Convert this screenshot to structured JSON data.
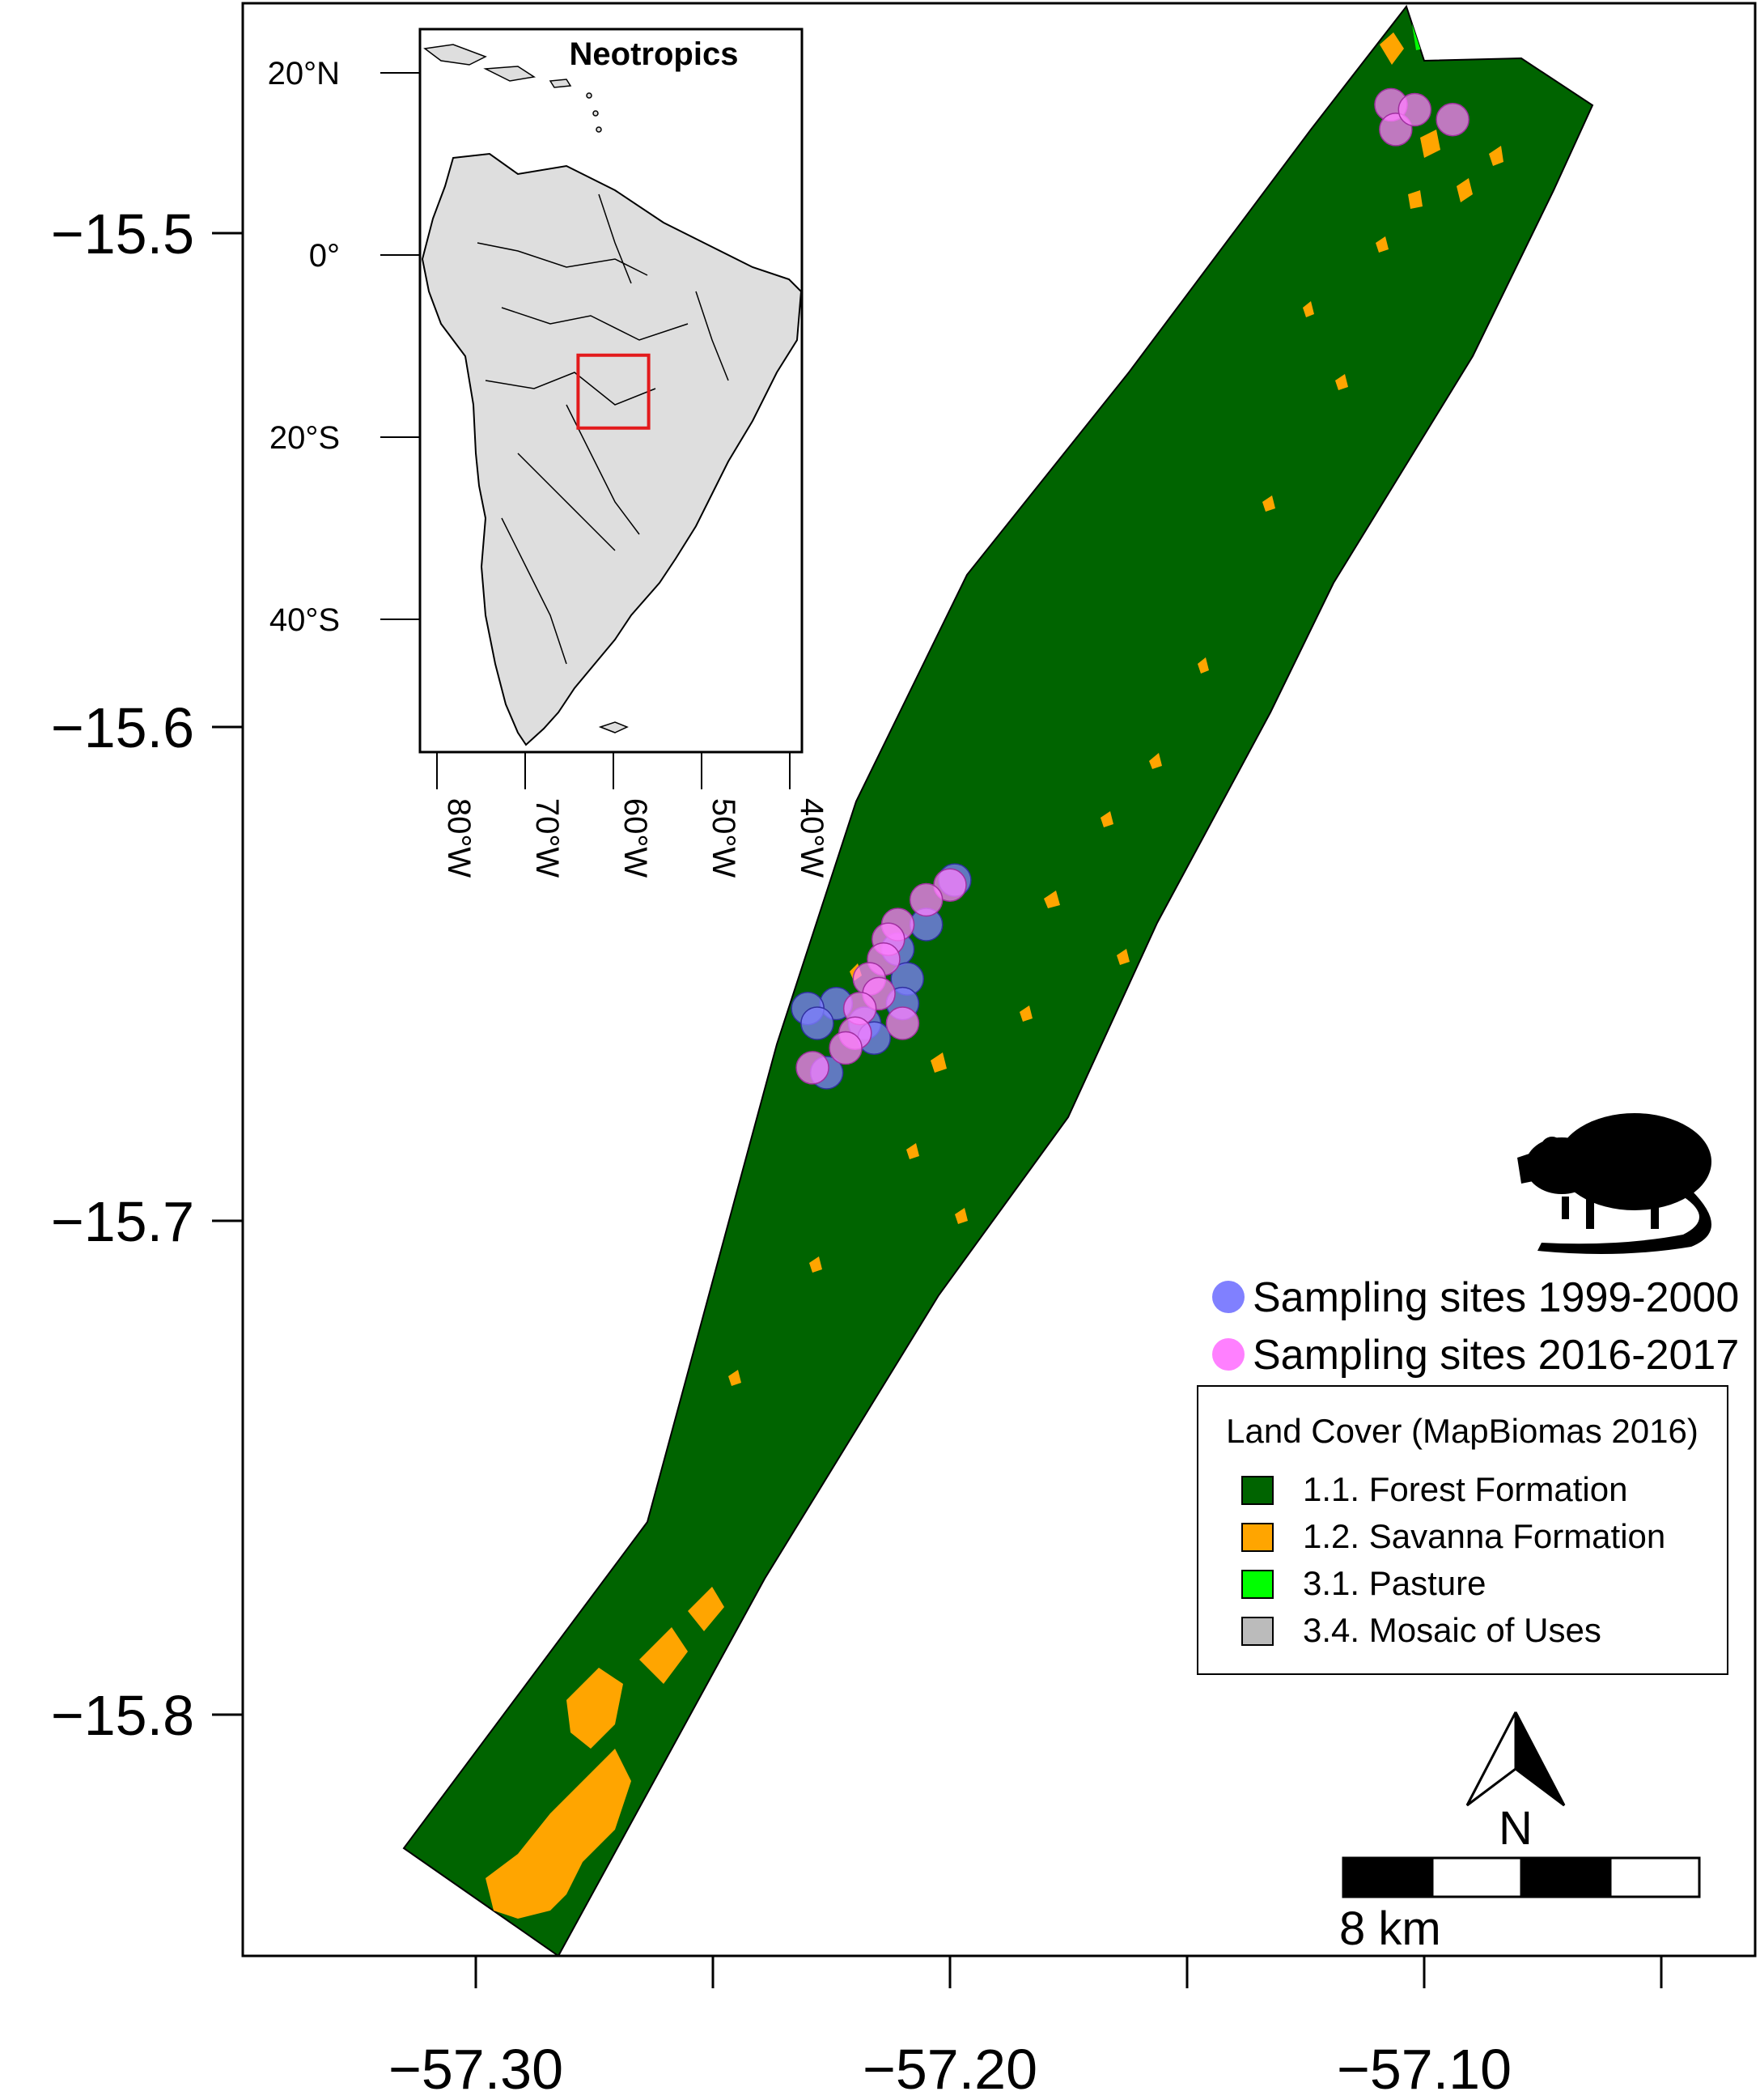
{
  "y_ticks": [
    {
      "value": -15.5,
      "label": "−15.5"
    },
    {
      "value": -15.6,
      "label": "−15.6"
    },
    {
      "value": -15.7,
      "label": "−15.7"
    },
    {
      "value": -15.8,
      "label": "−15.8"
    }
  ],
  "x_ticks": [
    {
      "value": -57.3,
      "label": "−57.30",
      "labeled": true
    },
    {
      "value": -57.25,
      "label": "",
      "labeled": false
    },
    {
      "value": -57.2,
      "label": "−57.20",
      "labeled": true
    },
    {
      "value": -57.15,
      "label": "",
      "labeled": false
    },
    {
      "value": -57.1,
      "label": "−57.10",
      "labeled": true
    },
    {
      "value": -57.05,
      "label": "",
      "labeled": false
    }
  ],
  "inset": {
    "title": "Neotropics",
    "lat_ticks": [
      {
        "value": 20,
        "label": "20°N"
      },
      {
        "value": 0,
        "label": "0°"
      },
      {
        "value": -20,
        "label": "20°S"
      },
      {
        "value": -40,
        "label": "40°S"
      }
    ],
    "lon_ticks": [
      {
        "value": -80,
        "label": "80°W"
      },
      {
        "value": -70,
        "label": "70°W"
      },
      {
        "value": -60,
        "label": "60°W"
      },
      {
        "value": -50,
        "label": "50°W"
      },
      {
        "value": -40,
        "label": "40°W"
      }
    ],
    "study_box": {
      "lon": [
        -64,
        -56
      ],
      "lat": [
        -19,
        -11
      ],
      "color": "#e31a1c"
    }
  },
  "sampling_legend": [
    {
      "label": "Sampling sites 1999-2000",
      "color": "#8080ff"
    },
    {
      "label": "Sampling sites 2016-2017",
      "color": "#ff80ff"
    }
  ],
  "land_cover_legend": {
    "title": "Land Cover (MapBiomas 2016)",
    "items": [
      {
        "label": "1.1. Forest Formation",
        "color": "#006400"
      },
      {
        "label": "1.2. Savanna Formation",
        "color": "#ffa500"
      },
      {
        "label": "3.1. Pasture",
        "color": "#00ff00"
      },
      {
        "label": "3.4. Mosaic of Uses",
        "color": "#bbbbbb"
      }
    ]
  },
  "north_arrow": {
    "label": "N"
  },
  "scale_bar": {
    "label": "8 km"
  },
  "sites_1999": [
    {
      "lon": -57.199,
      "lat": -15.631
    },
    {
      "lon": -57.205,
      "lat": -15.64
    },
    {
      "lon": -57.211,
      "lat": -15.645
    },
    {
      "lon": -57.209,
      "lat": -15.651
    },
    {
      "lon": -57.224,
      "lat": -15.656
    },
    {
      "lon": -57.218,
      "lat": -15.66
    },
    {
      "lon": -57.216,
      "lat": -15.663
    },
    {
      "lon": -57.23,
      "lat": -15.657
    },
    {
      "lon": -57.228,
      "lat": -15.66
    },
    {
      "lon": -57.226,
      "lat": -15.67
    },
    {
      "lon": -57.21,
      "lat": -15.656
    }
  ],
  "sites_2016": [
    {
      "lon": -57.2,
      "lat": -15.632
    },
    {
      "lon": -57.205,
      "lat": -15.635
    },
    {
      "lon": -57.211,
      "lat": -15.64
    },
    {
      "lon": -57.213,
      "lat": -15.643
    },
    {
      "lon": -57.214,
      "lat": -15.647
    },
    {
      "lon": -57.217,
      "lat": -15.651
    },
    {
      "lon": -57.215,
      "lat": -15.654
    },
    {
      "lon": -57.219,
      "lat": -15.657
    },
    {
      "lon": -57.22,
      "lat": -15.662
    },
    {
      "lon": -57.222,
      "lat": -15.665
    },
    {
      "lon": -57.229,
      "lat": -15.669
    },
    {
      "lon": -57.21,
      "lat": -15.66
    },
    {
      "lon": -57.107,
      "lat": -15.474
    },
    {
      "lon": -57.106,
      "lat": -15.479
    },
    {
      "lon": -57.102,
      "lat": -15.475
    },
    {
      "lon": -57.094,
      "lat": -15.477
    }
  ]
}
